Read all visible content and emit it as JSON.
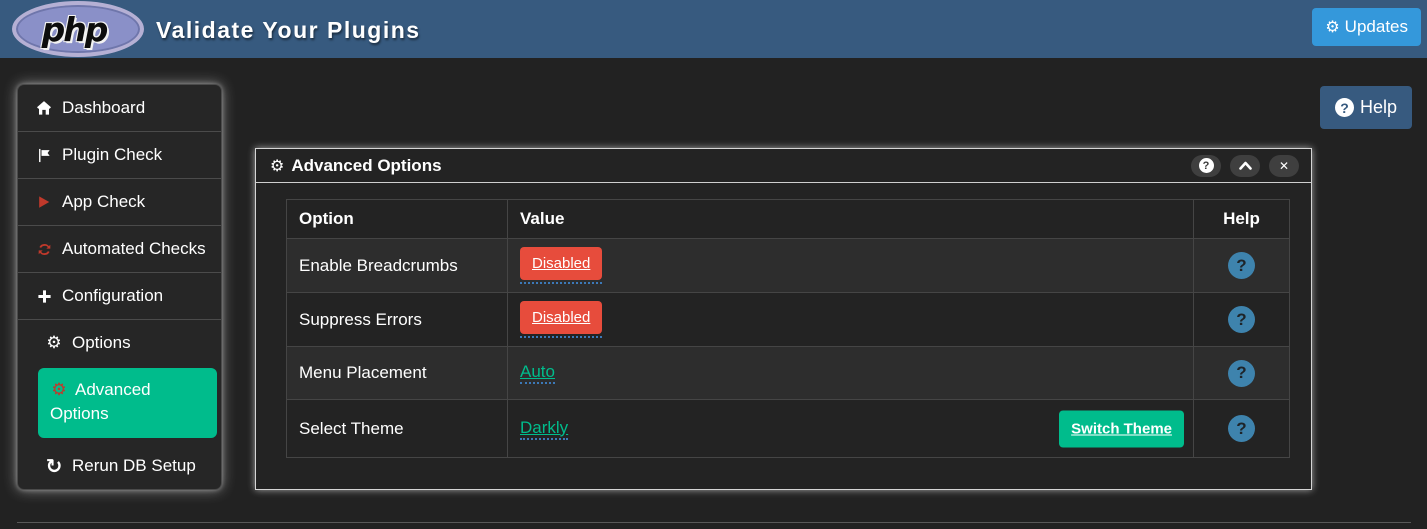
{
  "colors": {
    "header_bg": "#375a7f",
    "page_bg": "#222222",
    "accent_blue": "#3498db",
    "success_green": "#00bc8c",
    "danger_red": "#e74c3c",
    "help_icon_blue": "#3e83ad",
    "sidebar_icon_red": "#c0392b"
  },
  "icons": {
    "gear": "⚙",
    "question_mark": "?",
    "close": "✕",
    "redo": "↻"
  },
  "header": {
    "logo_text": "php",
    "title": "Validate Your Plugins",
    "updates_button": "Updates"
  },
  "content": {
    "help_button": "Help"
  },
  "sidebar": {
    "items": [
      {
        "label": "Dashboard",
        "icon": "home-icon",
        "icon_color": "#ffffff",
        "level": 0,
        "active": false
      },
      {
        "label": "Plugin Check",
        "icon": "flag-icon",
        "icon_color": "#ffffff",
        "level": 0,
        "active": false
      },
      {
        "label": "App Check",
        "icon": "play-icon",
        "icon_color": "#c0392b",
        "level": 0,
        "active": false
      },
      {
        "label": "Automated Checks",
        "icon": "sync-icon",
        "icon_color": "#c0392b",
        "level": 0,
        "active": false
      },
      {
        "label": "Configuration",
        "icon": "plus-icon",
        "icon_color": "#ffffff",
        "level": 0,
        "active": false
      },
      {
        "label": "Options",
        "icon": "gear-icon",
        "icon_color": "#ffffff",
        "level": 1,
        "active": false
      },
      {
        "label": "Advanced Options",
        "icon": "gear-icon",
        "icon_color": "#c0392b",
        "level": 2,
        "active": true
      },
      {
        "label": "Rerun DB Setup",
        "icon": "redo-icon",
        "icon_color": "#ffffff",
        "level": 1,
        "active": false
      }
    ]
  },
  "panel": {
    "title": "Advanced Options",
    "table": {
      "headers": {
        "option": "Option",
        "value": "Value",
        "help": "Help"
      },
      "rows": [
        {
          "option": "Enable Breadcrumbs",
          "value": "Disabled",
          "value_type": "danger-button"
        },
        {
          "option": "Suppress Errors",
          "value": "Disabled",
          "value_type": "danger-button"
        },
        {
          "option": "Menu Placement",
          "value": "Auto",
          "value_type": "link"
        },
        {
          "option": "Select Theme",
          "value": "Darkly",
          "value_type": "link",
          "extra_button": "Switch Theme"
        }
      ]
    }
  }
}
